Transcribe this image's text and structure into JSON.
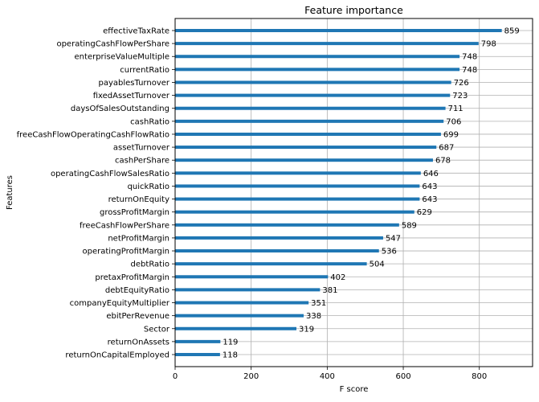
{
  "chart_data": {
    "type": "bar",
    "orientation": "horizontal",
    "title": "Feature importance",
    "xlabel": "F score",
    "ylabel": "Features",
    "xlim": [
      0,
      940
    ],
    "xticks": [
      0,
      200,
      400,
      600,
      800
    ],
    "grid": true,
    "bar_color": "#1f77b4",
    "categories": [
      "effectiveTaxRate",
      "operatingCashFlowPerShare",
      "enterpriseValueMultiple",
      "currentRatio",
      "payablesTurnover",
      "fixedAssetTurnover",
      "daysOfSalesOutstanding",
      "cashRatio",
      "freeCashFlowOperatingCashFlowRatio",
      "assetTurnover",
      "cashPerShare",
      "operatingCashFlowSalesRatio",
      "quickRatio",
      "returnOnEquity",
      "grossProfitMargin",
      "freeCashFlowPerShare",
      "netProfitMargin",
      "operatingProfitMargin",
      "debtRatio",
      "pretaxProfitMargin",
      "debtEquityRatio",
      "companyEquityMultiplier",
      "ebitPerRevenue",
      "Sector",
      "returnOnAssets",
      "returnOnCapitalEmployed"
    ],
    "values": [
      859,
      798,
      748,
      748,
      726,
      723,
      711,
      706,
      699,
      687,
      678,
      646,
      643,
      643,
      629,
      589,
      547,
      536,
      504,
      402,
      381,
      351,
      338,
      319,
      119,
      118
    ]
  }
}
